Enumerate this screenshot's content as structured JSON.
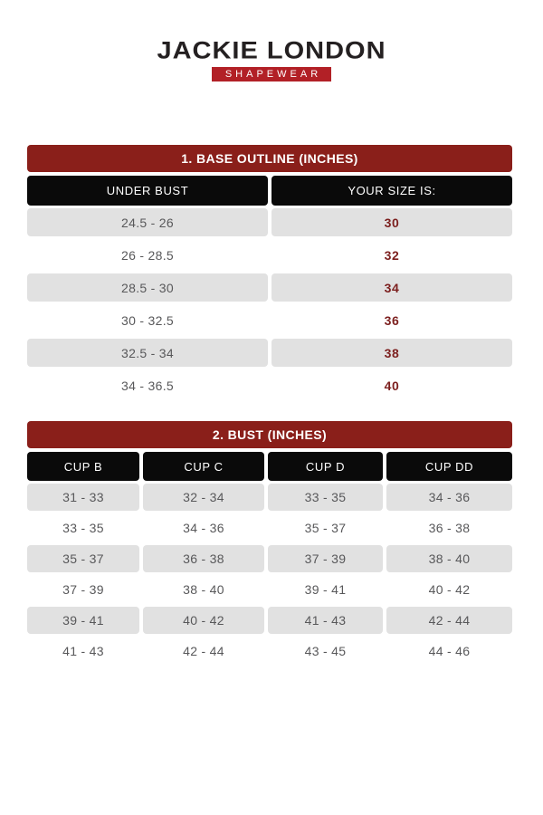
{
  "brand": {
    "name": "JACKIE LONDON",
    "tagline": "SHAPEWEAR"
  },
  "colors": {
    "title_bar": "#8a1f1a",
    "header_bar": "#0a0a0a",
    "row_alt_bg": "#e1e1e1",
    "cell_text": "#58585a",
    "size_text": "#7c1f1e",
    "tagline_bg": "#b22026",
    "logo_text": "#242021",
    "page_bg": "#ffffff"
  },
  "size_tables": [
    {
      "title": "1. BASE OUTLINE (INCHES)",
      "columns": [
        "UNDER BUST",
        "YOUR SIZE IS:"
      ],
      "rows": [
        [
          "24.5 - 26",
          "30"
        ],
        [
          "26 - 28.5",
          "32"
        ],
        [
          "28.5 - 30",
          "34"
        ],
        [
          "30 - 32.5",
          "36"
        ],
        [
          "32.5 - 34",
          "38"
        ],
        [
          "34 - 36.5",
          "40"
        ]
      ]
    },
    {
      "title": "2. BUST (INCHES)",
      "columns": [
        "CUP B",
        "CUP C",
        "CUP D",
        "CUP DD"
      ],
      "rows": [
        [
          "31 - 33",
          "32 - 34",
          "33 - 35",
          "34 - 36"
        ],
        [
          "33 - 35",
          "34 - 36",
          "35 - 37",
          "36 - 38"
        ],
        [
          "35 - 37",
          "36 - 38",
          "37 - 39",
          "38 - 40"
        ],
        [
          "37 - 39",
          "38 - 40",
          "39 - 41",
          "40 - 42"
        ],
        [
          "39 - 41",
          "40 - 42",
          "41 - 43",
          "42 - 44"
        ],
        [
          "41 - 43",
          "42 - 44",
          "43 - 45",
          "44 - 46"
        ]
      ]
    }
  ]
}
